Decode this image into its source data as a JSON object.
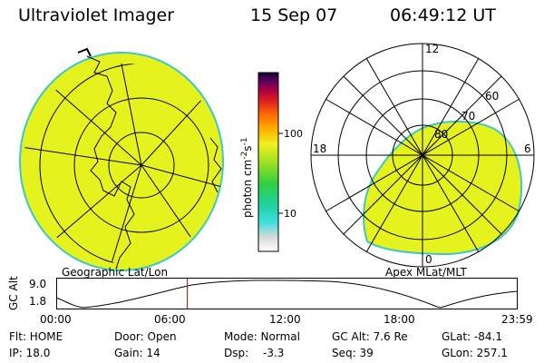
{
  "header": {
    "app": "Ultraviolet Imager",
    "date": "15 Sep 07",
    "time": "06:49:12 UT"
  },
  "colorbar": {
    "label": "photon cm",
    "label_exp1": "-2",
    "label_mid": "s",
    "label_exp2": "-1",
    "tick_100": "100",
    "tick_10": "10"
  },
  "polar_plot": {
    "mlt_labels": {
      "top": "12",
      "left": "18",
      "right": "6",
      "bottom": "0"
    },
    "lat_labels": [
      "60",
      "70",
      "80"
    ],
    "caption": "Apex MLat/MLT"
  },
  "geo_plot": {
    "caption": "Geographic Lat/Lon"
  },
  "altitude_plot": {
    "ylabel": "GC Alt",
    "y_ticks": [
      "9.0",
      "1.8"
    ],
    "x_ticks": [
      "00:00",
      "06:00",
      "12:00",
      "18:00",
      "23:59"
    ],
    "current_time_fraction": 0.284
  },
  "status": {
    "flt": "Flt: HOME",
    "ip": "IP: 18.0",
    "door": "Door: Open",
    "gain": "Gain: 14",
    "mode": "Mode: Normal",
    "dsp_label": "Dsp:",
    "dsp_value": "-3.3",
    "gc_alt": "GC Alt: 7.6 Re",
    "seq": "Seq: 39",
    "glat": "GLat: -84.1",
    "glon": "GLon: 257.1"
  },
  "colors": {
    "fill": "#e6f21e",
    "edge": "#3cc8c8"
  }
}
